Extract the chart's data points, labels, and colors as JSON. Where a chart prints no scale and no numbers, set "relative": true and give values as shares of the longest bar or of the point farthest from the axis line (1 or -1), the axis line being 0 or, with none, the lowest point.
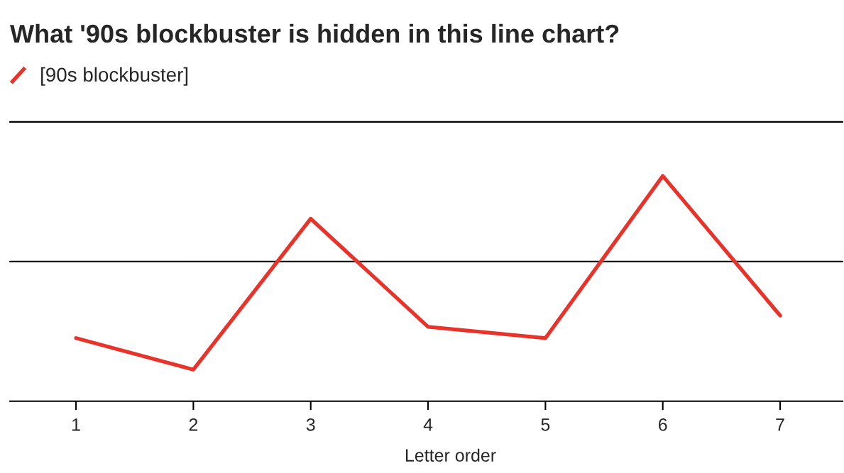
{
  "chart_data": {
    "type": "line",
    "title": "What '90s blockbuster is hidden in this line chart?",
    "xlabel": "Letter order",
    "categories": [
      "1",
      "2",
      "3",
      "4",
      "5",
      "6",
      "7"
    ],
    "series": [
      {
        "name": "[90s blockbuster]",
        "color": "#e8332a",
        "values": [
          0.28,
          0.14,
          0.81,
          0.33,
          0.28,
          1,
          0.38
        ]
      }
    ],
    "relative": true,
    "line_style": "solid",
    "legend": "top left",
    "grid": false,
    "ref_lines": [
      {
        "axis": "y",
        "value": 0.62,
        "color": "#000000"
      },
      {
        "axis": "y",
        "value": 1.24,
        "color": "#000000"
      }
    ]
  }
}
